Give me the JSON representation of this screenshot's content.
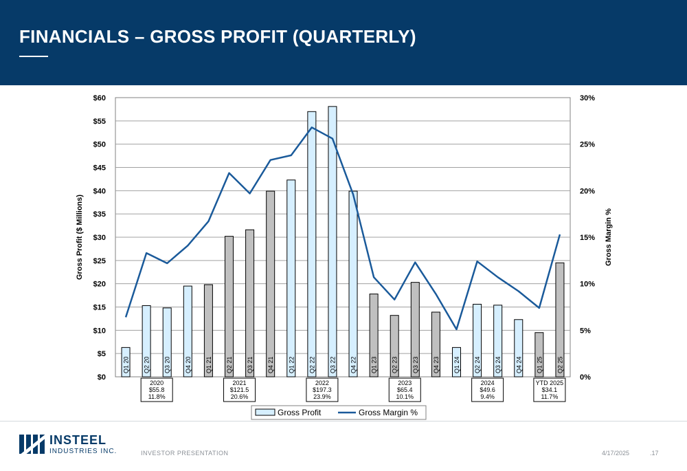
{
  "header": {
    "title": "FINANCIALS – GROSS PROFIT (QUARTERLY)"
  },
  "footer": {
    "brand_top": "INSTEEL",
    "brand_bottom": "INDUSTRIES INC.",
    "label": "INVESTOR PRESENTATION",
    "date": "4/17/2025",
    "page": ".17"
  },
  "colors": {
    "header_bg": "#063a68",
    "bar_light": "#d6efff",
    "bar_gray": "#c0c0c0",
    "line": "#1a5a9a"
  },
  "chart_data": {
    "type": "bar",
    "title": "",
    "xlabel": "",
    "ylabel": "Gross Profit ($ Millions)",
    "y2label": "Gross Margin %",
    "ylim": [
      0,
      60
    ],
    "y2lim": [
      0,
      30
    ],
    "yticks": [
      "$0",
      "$5",
      "$10",
      "$15",
      "$20",
      "$25",
      "$30",
      "$35",
      "$40",
      "$45",
      "$50",
      "$55",
      "$60"
    ],
    "y2ticks": [
      "0%",
      "5%",
      "10%",
      "15%",
      "20%",
      "25%",
      "30%"
    ],
    "grid": true,
    "legend_position": "bottom",
    "categories": [
      "Q1 20",
      "Q2 20",
      "Q3 20",
      "Q4 20",
      "Q1 21",
      "Q2 21",
      "Q3 21",
      "Q4 21",
      "Q1 22",
      "Q2 22",
      "Q3 22",
      "Q4 22",
      "Q1 23",
      "Q2 23",
      "Q3 23",
      "Q4 23",
      "Q1 24",
      "Q2 24",
      "Q3 24",
      "Q4 24",
      "Q1 25",
      "Q2 25"
    ],
    "bar_groups": [
      "light",
      "light",
      "light",
      "light",
      "gray",
      "gray",
      "gray",
      "gray",
      "light",
      "light",
      "light",
      "light",
      "gray",
      "gray",
      "gray",
      "gray",
      "light",
      "light",
      "light",
      "light",
      "gray",
      "gray"
    ],
    "series": [
      {
        "name": "Gross Profit",
        "type": "bar",
        "values": [
          6.3,
          15.3,
          14.8,
          19.5,
          19.8,
          30.2,
          31.6,
          39.9,
          42.3,
          57.0,
          58.1,
          39.9,
          17.8,
          13.2,
          20.3,
          13.9,
          6.3,
          15.6,
          15.4,
          12.3,
          9.5,
          24.5
        ]
      },
      {
        "name": "Gross Margin %",
        "type": "line",
        "axis": "right",
        "values": [
          6.4,
          13.3,
          12.2,
          14.1,
          16.7,
          21.9,
          19.7,
          23.3,
          23.8,
          26.8,
          25.6,
          19.6,
          10.7,
          8.3,
          12.3,
          8.9,
          5.1,
          12.4,
          10.7,
          9.2,
          7.4,
          15.3
        ]
      }
    ],
    "annotations": [
      {
        "lines": [
          "2020",
          "$55.8",
          "11.8%"
        ],
        "after_category": 1
      },
      {
        "lines": [
          "2021",
          "$121.5",
          "20.6%"
        ],
        "after_category": 5
      },
      {
        "lines": [
          "2022",
          "$197.3",
          "23.9%"
        ],
        "after_category": 9
      },
      {
        "lines": [
          "2023",
          "$65.4",
          "10.1%"
        ],
        "after_category": 13
      },
      {
        "lines": [
          "2024",
          "$49.6",
          "9.4%"
        ],
        "after_category": 17
      },
      {
        "lines": [
          "YTD 2025",
          "$34.1",
          "11.7%"
        ],
        "after_category": 20
      }
    ]
  }
}
